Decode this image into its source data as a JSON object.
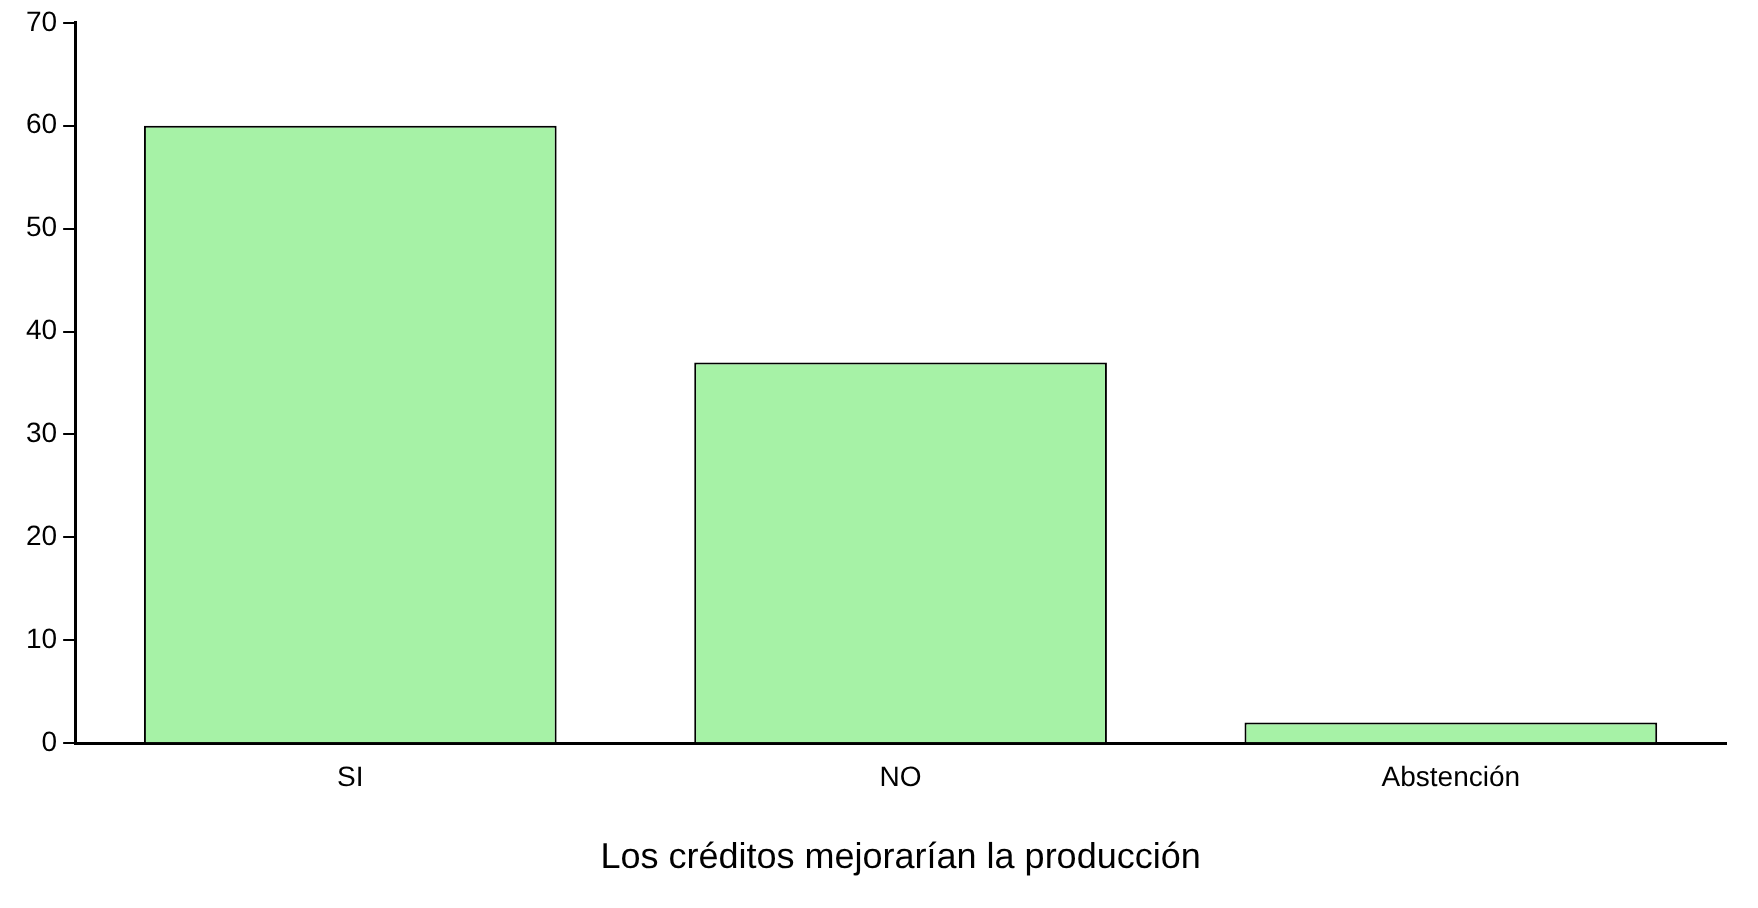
{
  "chart_data": {
    "type": "bar",
    "xlabel": "Los créditos mejorarían la producción",
    "categories": [
      "SI",
      "NO",
      "Abstención"
    ],
    "values": [
      60,
      37,
      2
    ],
    "color": "#a6f2a6",
    "ylim": [
      0,
      70
    ],
    "yticks": [
      0,
      10,
      20,
      30,
      40,
      50,
      60,
      70
    ],
    "grid": false,
    "legend": false
  }
}
